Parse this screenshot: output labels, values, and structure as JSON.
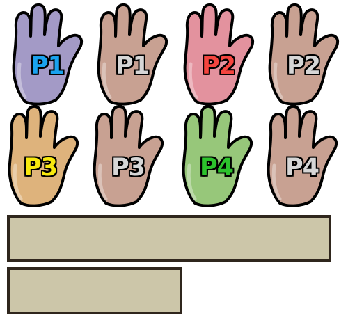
{
  "gloves": [
    {
      "label": "P1",
      "glove_color": "#a39ac6",
      "text_color": "#1aa2ee"
    },
    {
      "label": "P1",
      "glove_color": "#c8a192",
      "text_color": "#d6d6d6"
    },
    {
      "label": "P2",
      "glove_color": "#e3929e",
      "text_color": "#f4453f"
    },
    {
      "label": "P2",
      "glove_color": "#c8a192",
      "text_color": "#d6d6d6"
    },
    {
      "label": "P3",
      "glove_color": "#deb37c",
      "text_color": "#f7e80e"
    },
    {
      "label": "P3",
      "glove_color": "#c8a192",
      "text_color": "#d6d6d6"
    },
    {
      "label": "P4",
      "glove_color": "#97c77a",
      "text_color": "#2cc32c"
    },
    {
      "label": "P4",
      "glove_color": "#c8a192",
      "text_color": "#d6d6d6"
    }
  ],
  "colors": {
    "bar_fill": "#ccc6a9",
    "bar_border": "#2f261d",
    "outline": "#000000"
  }
}
